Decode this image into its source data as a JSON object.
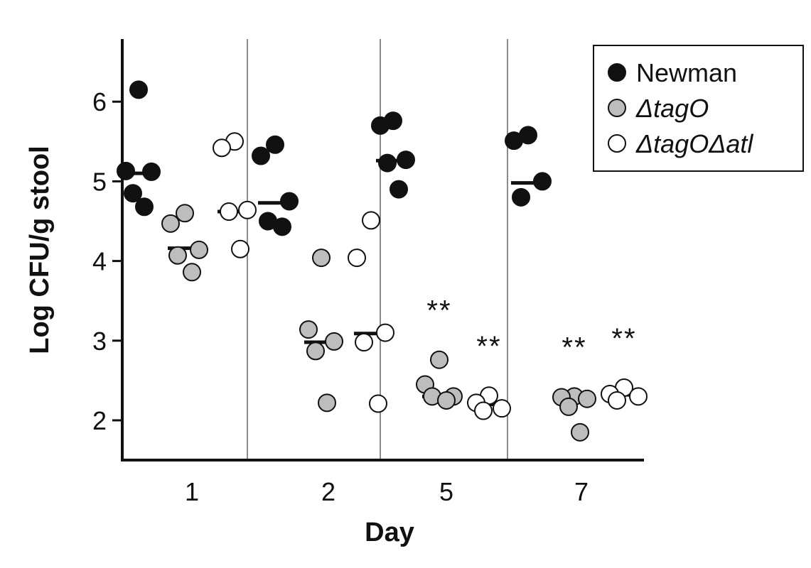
{
  "chart_data": {
    "type": "scatter",
    "title": "",
    "xlabel": "Day",
    "ylabel": "Log CFU/g stool",
    "ylim": [
      1.5,
      6.8
    ],
    "yticks": [
      "2",
      "3",
      "4",
      "5",
      "6"
    ],
    "categories": [
      "1",
      "2",
      "5",
      "7"
    ],
    "legend_position": "top-right",
    "series": [
      {
        "name": "Newman",
        "fill": "#111111",
        "stroke": "#111111",
        "points": [
          [
            6.15,
            5.13,
            5.12,
            4.68,
            4.85
          ],
          [
            5.46,
            5.32,
            4.75,
            4.43,
            4.5
          ],
          [
            5.76,
            5.7,
            5.27,
            5.23,
            4.9
          ],
          [
            5.58,
            5.51,
            5.0,
            4.8
          ]
        ],
        "medians": [
          5.1,
          4.73,
          5.26,
          4.98
        ]
      },
      {
        "name": "ΔtagO",
        "fill": "#bdbdbd",
        "stroke": "#111111",
        "points": [
          [
            4.6,
            4.47,
            4.14,
            4.07,
            3.86
          ],
          [
            4.04,
            3.14,
            2.99,
            2.87,
            2.22
          ],
          [
            2.76,
            2.45,
            2.3,
            2.3,
            2.25
          ],
          [
            2.3,
            2.29,
            2.27,
            2.17,
            1.85
          ]
        ],
        "medians": [
          4.16,
          2.98,
          2.3,
          2.27
        ]
      },
      {
        "name": "ΔtagOΔatl",
        "fill": "#ffffff",
        "stroke": "#111111",
        "points": [
          [
            5.5,
            5.42,
            4.64,
            4.62,
            4.15
          ],
          [
            4.51,
            4.04,
            3.1,
            2.98,
            2.21
          ],
          [
            2.31,
            2.22,
            2.15,
            2.12
          ],
          [
            2.41,
            2.33,
            2.3,
            2.25
          ]
        ],
        "medians": [
          4.62,
          3.09,
          2.2,
          2.32
        ]
      }
    ],
    "annotations": [
      {
        "text": "**",
        "day_index": 2,
        "series_index": 1
      },
      {
        "text": "**",
        "day_index": 2,
        "series_index": 2
      },
      {
        "text": "**",
        "day_index": 3,
        "series_index": 1
      },
      {
        "text": "**",
        "day_index": 3,
        "series_index": 2
      }
    ]
  }
}
